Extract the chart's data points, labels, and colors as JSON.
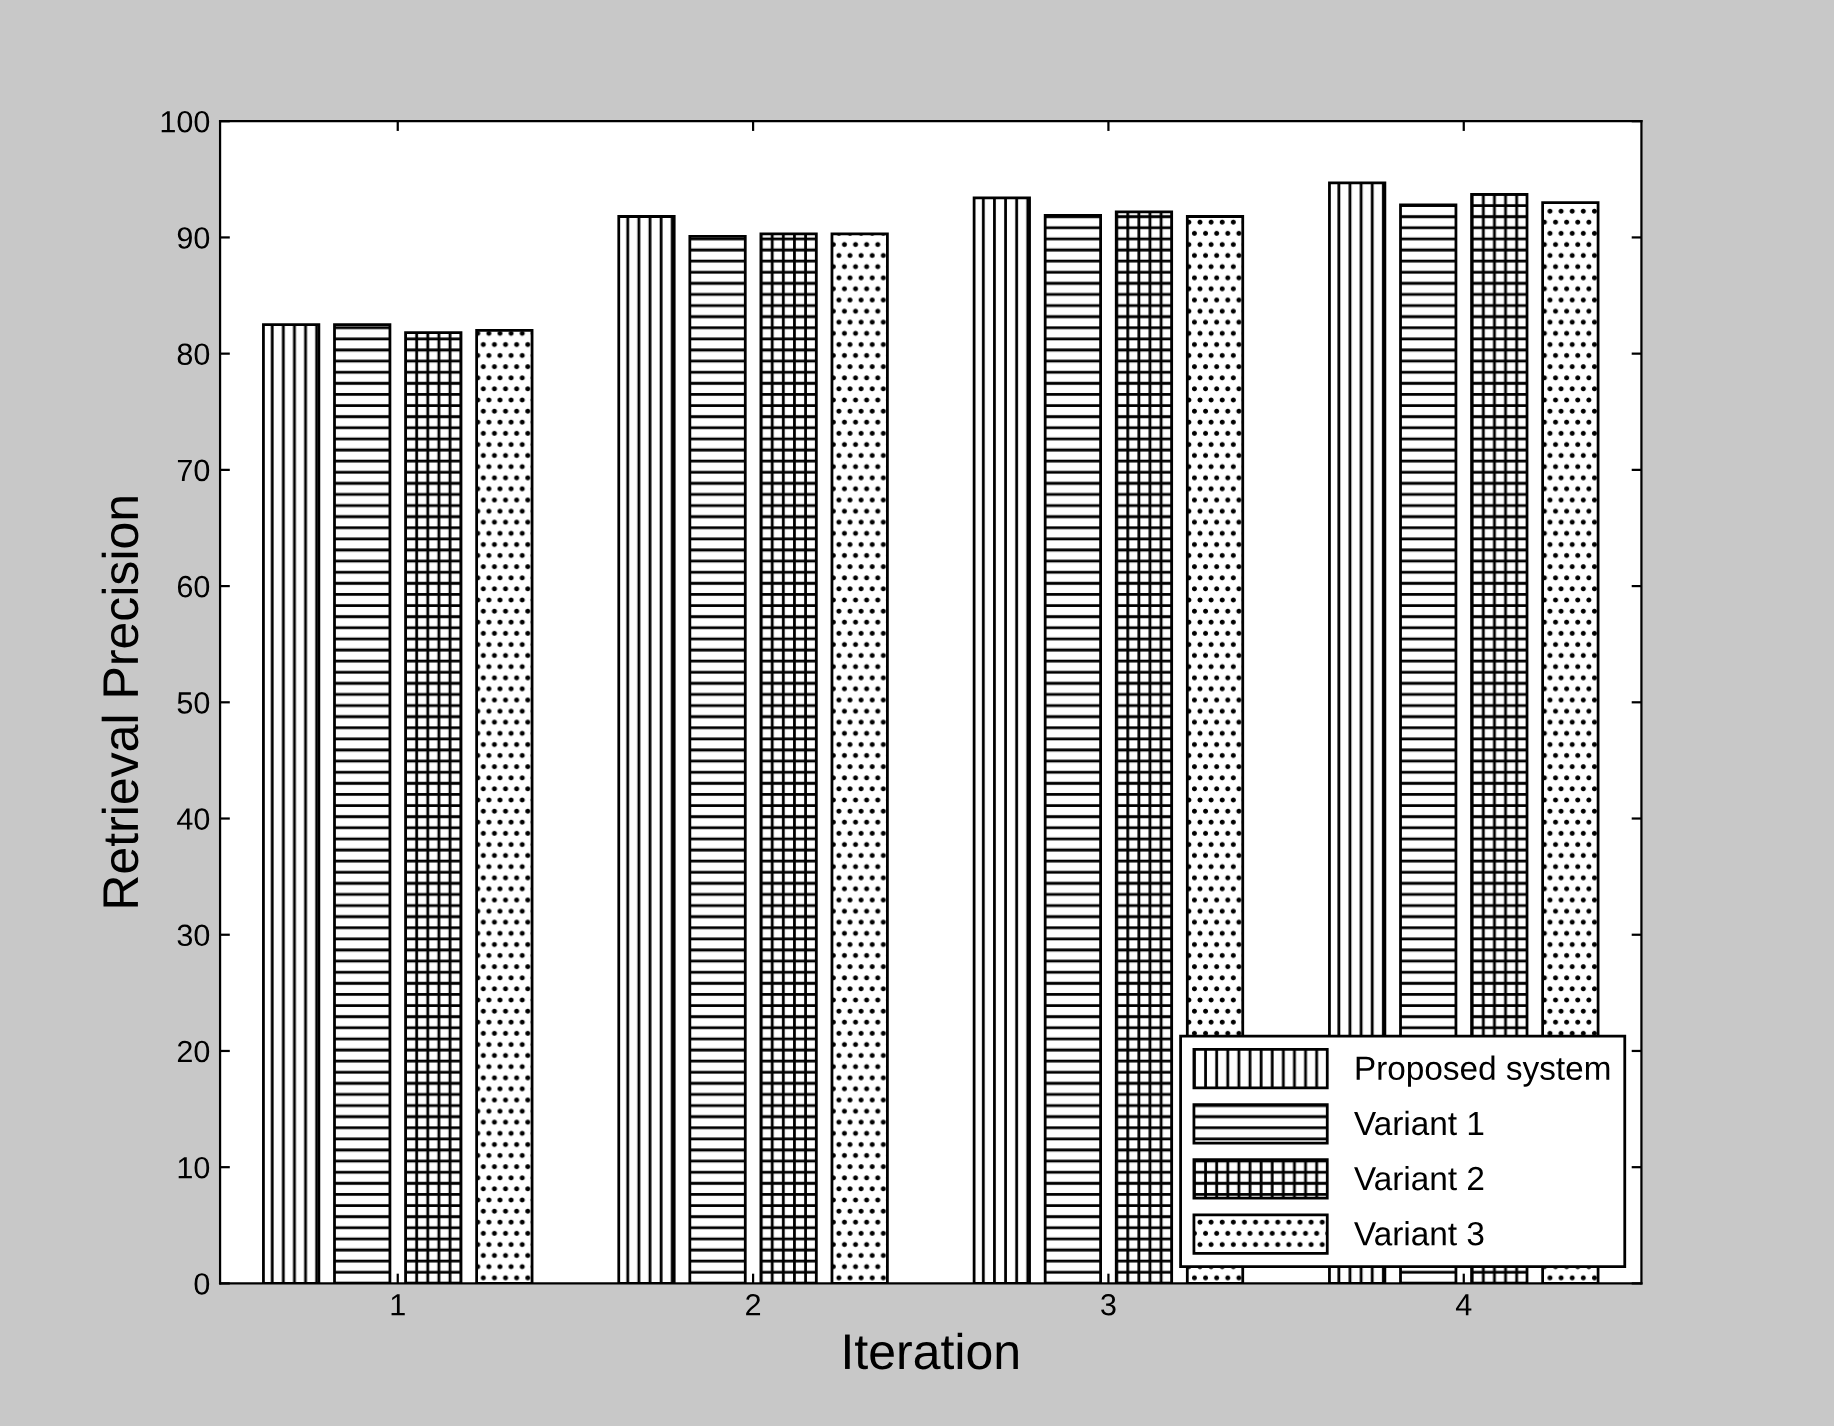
{
  "chart_data": {
    "type": "bar",
    "xlabel": "Iteration",
    "ylabel": "Retrieval Precision",
    "categories": [
      "1",
      "2",
      "3",
      "4"
    ],
    "series": [
      {
        "name": "Proposed system",
        "color": "#000000",
        "values": [
          82.5,
          91.8,
          93.4,
          94.7
        ]
      },
      {
        "name": "Variant 1",
        "color": "#000000",
        "values": [
          82.5,
          90.1,
          91.9,
          92.8
        ]
      },
      {
        "name": "Variant 2",
        "color": "#000000",
        "values": [
          81.8,
          90.3,
          92.2,
          93.7
        ]
      },
      {
        "name": "Variant 3",
        "color": "#000000",
        "values": [
          82.0,
          90.3,
          91.8,
          93.0
        ]
      }
    ],
    "ylim": [
      0,
      100
    ],
    "yticks": [
      0,
      10,
      20,
      30,
      40,
      50,
      60,
      70,
      80,
      90,
      100
    ],
    "grid": false,
    "legend": "bottom right"
  }
}
